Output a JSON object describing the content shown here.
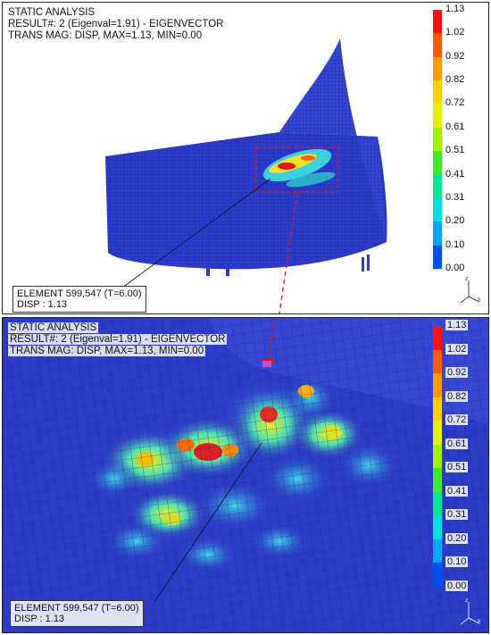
{
  "top": {
    "lines": [
      "STATIC ANALYSIS",
      "RESULT#: 2 (Eigenval=1.91) - EIGENVECTOR",
      "TRANS MAG: DISP, MAX=1.13, MIN=0.00"
    ],
    "legend": [
      "1.13",
      "1.02",
      "0.92",
      "0.82",
      "0.72",
      "0.61",
      "0.51",
      "0.41",
      "0.31",
      "0.20",
      "0.10",
      "0.00"
    ],
    "element": "ELEMENT 599,547 (T=6.00)",
    "disp": "DISP : 1.13"
  },
  "bottom": {
    "lines": [
      "STATIC ANALYSIS",
      "RESULT#: 2 (Eigenval=1.91) - EIGENVECTOR",
      "TRANS MAG: DISP, MAX=1.13, MIN=0.00"
    ],
    "legend": [
      "1.13",
      "1.02",
      "0.92",
      "0.82",
      "0.72",
      "0.61",
      "0.51",
      "0.41",
      "0.31",
      "0.20",
      "0.10",
      "0.00"
    ],
    "element": "ELEMENT 599,547 (T=6.00)",
    "disp": "DISP : 1.13"
  },
  "colors": {
    "legend_scale": [
      "#ff1010",
      "#ff5a00",
      "#ff9a00",
      "#ffd000",
      "#e8f000",
      "#a0f000",
      "#40e830",
      "#00e890",
      "#00e0e0",
      "#00a8f0",
      "#0050f0",
      "#2020c8"
    ],
    "model_blue": "#2d3cc6",
    "callout_red": "#e01818"
  }
}
